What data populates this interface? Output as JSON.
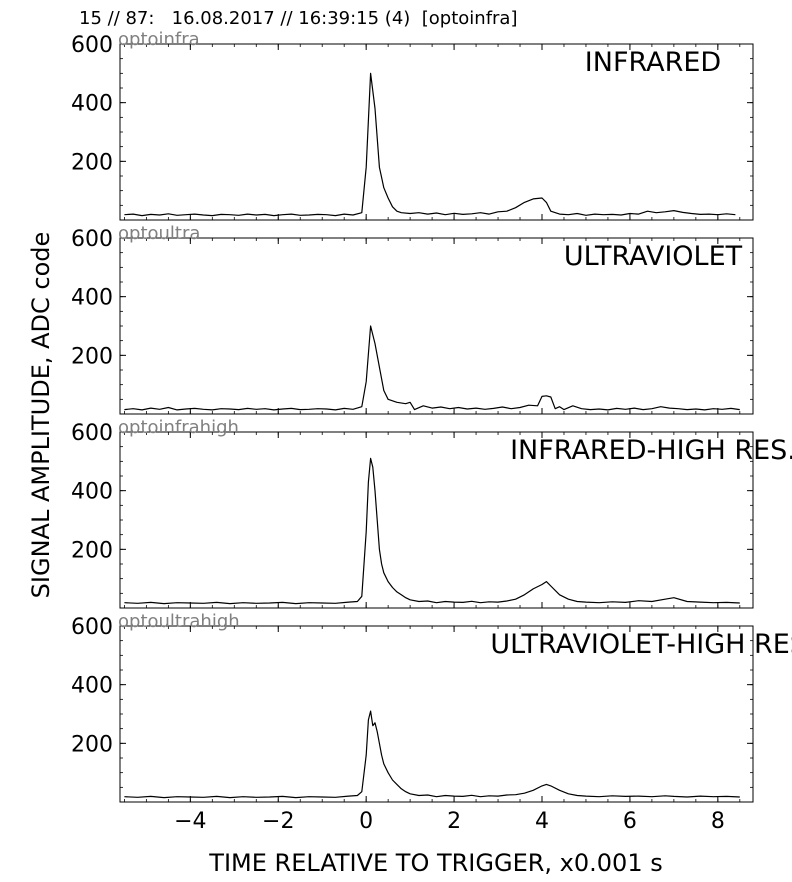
{
  "header": {
    "title": "15 // 87:   16.08.2017 // 16:39:15 (4)  [optoinfra]"
  },
  "chart_data": {
    "type": "line",
    "xlabel": "TIME RELATIVE TO TRIGGER,   x0.001 s",
    "ylabel": "SIGNAL AMPLITUDE,  ADC code",
    "xlim": [
      -5.6,
      8.8
    ],
    "xticks": [
      -4,
      -2,
      0,
      2,
      4,
      6,
      8
    ],
    "xtick_labels": [
      "−4",
      "−2",
      "0",
      "2",
      "4",
      "6",
      "8"
    ],
    "ylim": [
      0,
      600
    ],
    "yticks": [
      200,
      400,
      600
    ],
    "ytick_labels": [
      "200",
      "400",
      "600"
    ],
    "grid": false,
    "panels": [
      {
        "channel": "optoinfra",
        "title": "INFRARED",
        "series": [
          {
            "x": [
              -5.5,
              -5.3,
              -5.1,
              -4.9,
              -4.7,
              -4.5,
              -4.3,
              -4.1,
              -3.9,
              -3.7,
              -3.5,
              -3.3,
              -3.1,
              -2.9,
              -2.7,
              -2.5,
              -2.3,
              -2.1,
              -1.9,
              -1.7,
              -1.5,
              -1.3,
              -1.1,
              -0.9,
              -0.7,
              -0.5,
              -0.3,
              -0.1,
              0.0,
              0.1,
              0.2,
              0.3,
              0.4,
              0.5,
              0.6,
              0.7,
              0.8,
              1.0,
              1.2,
              1.4,
              1.6,
              1.8,
              2.0,
              2.2,
              2.4,
              2.6,
              2.8,
              3.0,
              3.2,
              3.4,
              3.6,
              3.8,
              4.0,
              4.1,
              4.2,
              4.4,
              4.6,
              4.8,
              5.0,
              5.2,
              5.4,
              5.6,
              5.8,
              6.0,
              6.2,
              6.4,
              6.6,
              6.8,
              7.0,
              7.2,
              7.4,
              7.6,
              7.8,
              8.0,
              8.2,
              8.4
            ],
            "y": [
              18,
              20,
              15,
              19,
              17,
              21,
              16,
              18,
              20,
              17,
              15,
              19,
              18,
              16,
              20,
              17,
              19,
              15,
              18,
              20,
              16,
              17,
              19,
              18,
              15,
              20,
              17,
              25,
              180,
              500,
              380,
              180,
              110,
              75,
              45,
              30,
              25,
              22,
              25,
              20,
              24,
              18,
              23,
              19,
              21,
              25,
              20,
              28,
              30,
              42,
              60,
              72,
              75,
              60,
              30,
              20,
              18,
              22,
              16,
              20,
              18,
              19,
              17,
              22,
              20,
              30,
              25,
              28,
              32,
              26,
              22,
              19,
              20,
              18,
              21,
              18
            ]
          }
        ]
      },
      {
        "channel": "optoultra",
        "title": "ULTRAVIOLET",
        "series": [
          {
            "x": [
              -5.5,
              -5.3,
              -5.1,
              -4.9,
              -4.7,
              -4.5,
              -4.3,
              -4.1,
              -3.9,
              -3.7,
              -3.5,
              -3.3,
              -3.1,
              -2.9,
              -2.7,
              -2.5,
              -2.3,
              -2.1,
              -1.9,
              -1.7,
              -1.5,
              -1.3,
              -1.1,
              -0.9,
              -0.7,
              -0.5,
              -0.3,
              -0.1,
              0.0,
              0.1,
              0.2,
              0.3,
              0.4,
              0.5,
              0.7,
              0.9,
              1.0,
              1.1,
              1.3,
              1.5,
              1.7,
              1.9,
              2.1,
              2.3,
              2.5,
              2.7,
              2.9,
              3.1,
              3.3,
              3.5,
              3.7,
              3.9,
              4.0,
              4.1,
              4.2,
              4.3,
              4.4,
              4.5,
              4.7,
              4.9,
              5.1,
              5.3,
              5.5,
              5.7,
              5.9,
              6.1,
              6.3,
              6.5,
              6.7,
              6.9,
              7.1,
              7.3,
              7.5,
              7.7,
              7.9,
              8.1,
              8.3,
              8.5
            ],
            "y": [
              15,
              18,
              14,
              20,
              16,
              22,
              14,
              17,
              19,
              16,
              14,
              18,
              17,
              15,
              19,
              16,
              18,
              14,
              17,
              19,
              15,
              16,
              18,
              17,
              14,
              19,
              16,
              25,
              110,
              300,
              240,
              160,
              80,
              50,
              40,
              35,
              40,
              15,
              28,
              20,
              24,
              18,
              22,
              17,
              20,
              16,
              19,
              24,
              18,
              22,
              30,
              28,
              60,
              62,
              58,
              18,
              25,
              15,
              28,
              18,
              15,
              17,
              14,
              19,
              16,
              20,
              15,
              18,
              25,
              20,
              18,
              15,
              17,
              14,
              18,
              16,
              19,
              15
            ]
          }
        ]
      },
      {
        "channel": "optoinfrahigh",
        "title": "INFRARED-HIGH RES.",
        "series": [
          {
            "x": [
              -5.5,
              -5.2,
              -4.9,
              -4.6,
              -4.3,
              -4.0,
              -3.7,
              -3.4,
              -3.1,
              -2.8,
              -2.5,
              -2.2,
              -1.9,
              -1.6,
              -1.3,
              -1.0,
              -0.7,
              -0.4,
              -0.2,
              -0.1,
              0.0,
              0.05,
              0.1,
              0.15,
              0.2,
              0.25,
              0.3,
              0.35,
              0.4,
              0.5,
              0.6,
              0.7,
              0.8,
              0.9,
              1.0,
              1.2,
              1.4,
              1.6,
              1.8,
              2.0,
              2.2,
              2.4,
              2.6,
              2.8,
              3.0,
              3.2,
              3.4,
              3.6,
              3.8,
              4.0,
              4.1,
              4.2,
              4.4,
              4.6,
              4.8,
              5.0,
              5.3,
              5.6,
              5.9,
              6.2,
              6.5,
              6.8,
              7.0,
              7.3,
              7.6,
              7.9,
              8.2,
              8.5
            ],
            "y": [
              18,
              16,
              19,
              15,
              18,
              17,
              16,
              19,
              15,
              18,
              16,
              17,
              19,
              15,
              18,
              17,
              16,
              20,
              22,
              40,
              260,
              430,
              510,
              480,
              400,
              300,
              200,
              150,
              120,
              90,
              70,
              55,
              45,
              35,
              28,
              22,
              24,
              18,
              22,
              20,
              19,
              23,
              18,
              21,
              20,
              24,
              30,
              45,
              65,
              80,
              90,
              75,
              45,
              30,
              22,
              20,
              18,
              21,
              19,
              25,
              22,
              30,
              35,
              22,
              20,
              18,
              19,
              17
            ]
          }
        ]
      },
      {
        "channel": "optoultrahigh",
        "title": "ULTRAVIOLET-HIGH RES.",
        "series": [
          {
            "x": [
              -5.5,
              -5.2,
              -4.9,
              -4.6,
              -4.3,
              -4.0,
              -3.7,
              -3.4,
              -3.1,
              -2.8,
              -2.5,
              -2.2,
              -1.9,
              -1.6,
              -1.3,
              -1.0,
              -0.7,
              -0.4,
              -0.2,
              -0.1,
              0.0,
              0.05,
              0.1,
              0.15,
              0.2,
              0.25,
              0.3,
              0.35,
              0.4,
              0.5,
              0.6,
              0.7,
              0.8,
              0.9,
              1.0,
              1.2,
              1.4,
              1.6,
              1.8,
              2.0,
              2.2,
              2.4,
              2.6,
              2.8,
              3.0,
              3.2,
              3.4,
              3.6,
              3.8,
              4.0,
              4.1,
              4.2,
              4.4,
              4.6,
              4.8,
              5.0,
              5.3,
              5.6,
              5.9,
              6.2,
              6.5,
              6.8,
              7.0,
              7.3,
              7.6,
              7.9,
              8.2,
              8.5
            ],
            "y": [
              18,
              16,
              19,
              15,
              18,
              17,
              16,
              19,
              15,
              18,
              16,
              17,
              19,
              15,
              18,
              17,
              16,
              20,
              22,
              35,
              160,
              280,
              310,
              260,
              270,
              240,
              200,
              160,
              130,
              100,
              75,
              60,
              45,
              35,
              28,
              22,
              24,
              18,
              22,
              20,
              19,
              23,
              18,
              21,
              20,
              24,
              25,
              30,
              40,
              55,
              60,
              55,
              40,
              28,
              22,
              20,
              18,
              21,
              19,
              20,
              18,
              21,
              19,
              17,
              20,
              18,
              19,
              17
            ]
          }
        ]
      }
    ]
  }
}
